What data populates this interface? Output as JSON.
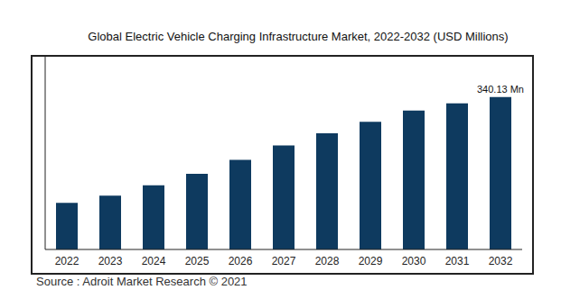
{
  "chart_data": {
    "type": "bar",
    "title": "Global Electric Vehicle Charging Infrastructure Market, 2022-2032 (USD Millions)",
    "source": "Source : Adroit Market Research © 2021",
    "categories": [
      "2022",
      "2023",
      "2024",
      "2025",
      "2026",
      "2027",
      "2028",
      "2029",
      "2030",
      "2031",
      "2032"
    ],
    "values": [
      104,
      120,
      143,
      169,
      200,
      232,
      259,
      285,
      310,
      326,
      340.13
    ],
    "value_labels": [
      null,
      null,
      null,
      null,
      null,
      null,
      null,
      null,
      null,
      null,
      "340.13 Mn"
    ],
    "data_labels": true,
    "color": "#0e3a5f",
    "ylim": [
      0,
      430
    ],
    "tick_labels": "x",
    "grid": false
  }
}
